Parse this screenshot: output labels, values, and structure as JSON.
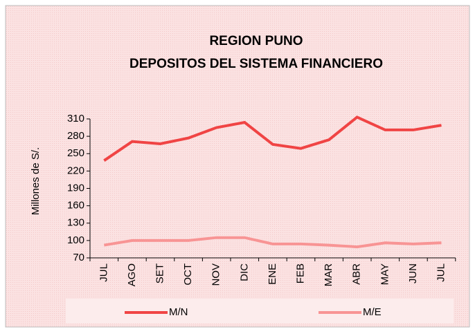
{
  "chart_data": {
    "type": "line",
    "title": "REGION PUNO",
    "subtitle": "DEPOSITOS DEL SISTEMA FINANCIERO",
    "y_label": "Millones de S/.",
    "categories": [
      "JUL",
      "AGO",
      "SET",
      "OCT",
      "NOV",
      "DIC",
      "ENE",
      "FEB",
      "MAR",
      "ABR",
      "MAY",
      "JUN",
      "JUL"
    ],
    "series": [
      {
        "name": "M/N",
        "color": "#f04444",
        "values": [
          238,
          271,
          267,
          277,
          295,
          304,
          266,
          259,
          274,
          313,
          291,
          291,
          299
        ]
      },
      {
        "name": "M/E",
        "color": "#f89494",
        "values": [
          92,
          100,
          100,
          100,
          105,
          105,
          94,
          94,
          92,
          89,
          96,
          94,
          96
        ]
      }
    ],
    "ylim": [
      70,
      310
    ],
    "yticks": [
      70,
      100,
      130,
      160,
      190,
      220,
      250,
      280,
      310
    ]
  }
}
